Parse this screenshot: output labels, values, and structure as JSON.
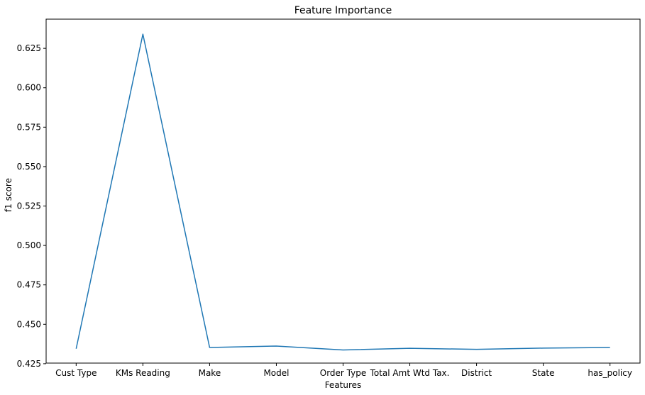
{
  "chart_data": {
    "type": "line",
    "title": "Feature Importance",
    "xlabel": "Features",
    "ylabel": "f1 score",
    "categories": [
      "Cust Type",
      "KMs Reading",
      "Make",
      "Model",
      "Order Type",
      "Total Amt Wtd Tax.",
      "District",
      "State",
      "has_policy"
    ],
    "series": [
      {
        "values": [
          0.4345,
          0.634,
          0.4353,
          0.4362,
          0.4337,
          0.4348,
          0.4341,
          0.4349,
          0.4353
        ],
        "color": "#1f77b4"
      }
    ],
    "ylim": [
      0.4254,
      0.6435
    ],
    "yticks": [
      0.425,
      0.45,
      0.475,
      0.5,
      0.525,
      0.55,
      0.575,
      0.6,
      0.625
    ],
    "ytick_labels": [
      "0.425",
      "0.450",
      "0.475",
      "0.500",
      "0.525",
      "0.550",
      "0.575",
      "0.600",
      "0.625"
    ],
    "grid": false,
    "legend": "none"
  }
}
